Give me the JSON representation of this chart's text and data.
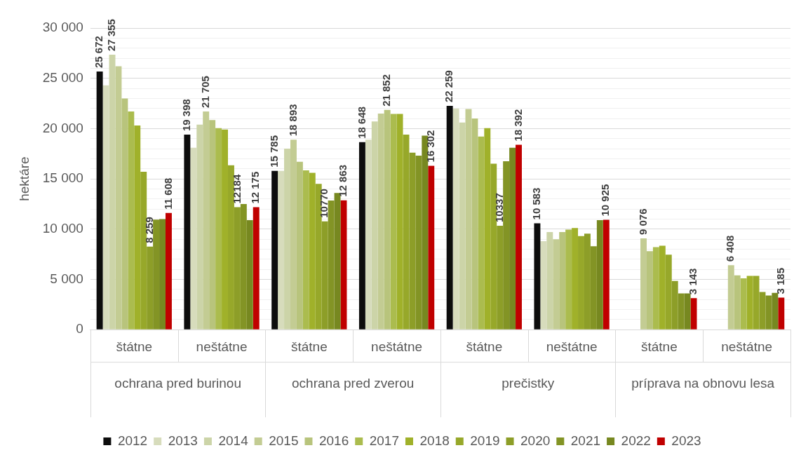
{
  "chart_data": {
    "type": "bar",
    "ylabel": "hektáre",
    "categories": [
      "štátne",
      "neštátne",
      "štátne",
      "neštátne",
      "štátne",
      "neštátne",
      "štátne",
      "neštátne"
    ],
    "annotations": [
      "ochrana pred burinou",
      "ochrana pred zverou",
      "prečistky",
      "príprava na obnovu lesa"
    ],
    "ylim": [
      0,
      30000
    ],
    "yticks": [
      {
        "value": 0,
        "label": "0"
      },
      {
        "value": 1000,
        "label": null
      },
      {
        "value": 2000,
        "label": null
      },
      {
        "value": 3000,
        "label": null
      },
      {
        "value": 4000,
        "label": null
      },
      {
        "value": 5000,
        "label": "5 000"
      },
      {
        "value": 6000,
        "label": null
      },
      {
        "value": 7000,
        "label": null
      },
      {
        "value": 8000,
        "label": null
      },
      {
        "value": 9000,
        "label": null
      },
      {
        "value": 10000,
        "label": "10 000"
      },
      {
        "value": 11000,
        "label": null
      },
      {
        "value": 12000,
        "label": null
      },
      {
        "value": 13000,
        "label": null
      },
      {
        "value": 14000,
        "label": null
      },
      {
        "value": 15000,
        "label": "15 000"
      },
      {
        "value": 16000,
        "label": null
      },
      {
        "value": 17000,
        "label": null
      },
      {
        "value": 18000,
        "label": null
      },
      {
        "value": 19000,
        "label": null
      },
      {
        "value": 20000,
        "label": "20 000"
      },
      {
        "value": 21000,
        "label": null
      },
      {
        "value": 22000,
        "label": null
      },
      {
        "value": 23000,
        "label": null
      },
      {
        "value": 24000,
        "label": null
      },
      {
        "value": 25000,
        "label": "25 000"
      },
      {
        "value": 26000,
        "label": null
      },
      {
        "value": 27000,
        "label": null
      },
      {
        "value": 28000,
        "label": null
      },
      {
        "value": 29000,
        "label": null
      },
      {
        "value": 30000,
        "label": "30 000"
      }
    ],
    "grid": "y",
    "legend": "bottom",
    "series": [
      {
        "name": "2012",
        "color": "#0d0d0d",
        "values": [
          25672,
          19398,
          15785,
          18648,
          22259,
          10583,
          null,
          null
        ],
        "value_labels": [
          "25 672",
          "19 398",
          "15 785",
          "18 648",
          "22 259",
          "10 583",
          null,
          null
        ]
      },
      {
        "name": "2013",
        "color": "#d7dcbc",
        "values": [
          24300,
          18100,
          15800,
          18900,
          22000,
          8800,
          null,
          null
        ]
      },
      {
        "name": "2014",
        "color": "#ccd4a8",
        "values": [
          27355,
          20400,
          18000,
          20700,
          20600,
          9700,
          null,
          null
        ],
        "value_labels": [
          "27 355",
          null,
          null,
          null,
          null,
          null,
          null,
          null
        ]
      },
      {
        "name": "2015",
        "color": "#c3cc93",
        "values": [
          26200,
          21705,
          18893,
          21500,
          21950,
          9000,
          9076,
          6408
        ],
        "value_labels": [
          null,
          "21 705",
          "18 893",
          null,
          null,
          null,
          "9 076",
          "6 408"
        ]
      },
      {
        "name": "2016",
        "color": "#b8c47c",
        "values": [
          23000,
          20850,
          16700,
          21852,
          21000,
          9700,
          7800,
          5400
        ],
        "value_labels": [
          null,
          null,
          null,
          "21 852",
          null,
          null,
          null,
          null
        ]
      },
      {
        "name": "2017",
        "color": "#abbc4e",
        "values": [
          21700,
          20050,
          15850,
          21450,
          19200,
          9950,
          8200,
          5100
        ]
      },
      {
        "name": "2018",
        "color": "#a0b12a",
        "values": [
          20300,
          19900,
          15600,
          21450,
          20050,
          10100,
          8350,
          5350
        ]
      },
      {
        "name": "2019",
        "color": "#97a82a",
        "values": [
          15700,
          16350,
          14500,
          19400,
          16500,
          9300,
          7450,
          5350
        ]
      },
      {
        "name": "2020",
        "color": "#8d9e28",
        "values": [
          8259,
          12184,
          10770,
          17600,
          10337,
          9550,
          4850,
          3750
        ],
        "value_labels": [
          "8 259",
          "12184",
          "10770",
          null,
          "10337",
          null,
          null,
          null
        ]
      },
      {
        "name": "2021",
        "color": "#839425",
        "values": [
          10950,
          12500,
          12850,
          17300,
          16750,
          8300,
          3600,
          3400
        ]
      },
      {
        "name": "2022",
        "color": "#778820",
        "values": [
          11000,
          10900,
          13600,
          19300,
          18100,
          10900,
          3600,
          3650
        ]
      },
      {
        "name": "2023",
        "color": "#c00000",
        "values": [
          11608,
          12175,
          12863,
          16302,
          18392,
          10925,
          3143,
          3185
        ],
        "value_labels": [
          "11 608",
          "12 175",
          "12 863",
          "16 302",
          "18 392",
          "10 925",
          "3 143",
          "3 185"
        ]
      }
    ]
  }
}
